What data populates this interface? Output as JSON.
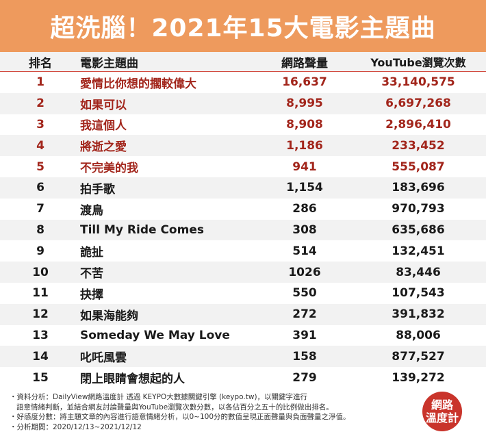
{
  "title": "超洗腦！2021年15大電影主題曲",
  "table": {
    "headers": {
      "rank": "排名",
      "title": "電影主題曲",
      "volume": "網路聲量",
      "views": "YouTube瀏覽次數"
    },
    "rows": [
      {
        "rank": "1",
        "title": "愛情比你想的擱較偉大",
        "volume": "16,637",
        "views": "33,140,575"
      },
      {
        "rank": "2",
        "title": "如果可以",
        "volume": "8,995",
        "views": "6,697,268"
      },
      {
        "rank": "3",
        "title": "我這個人",
        "volume": "8,908",
        "views": "2,896,410"
      },
      {
        "rank": "4",
        "title": "將逝之愛",
        "volume": "1,186",
        "views": "233,452"
      },
      {
        "rank": "5",
        "title": "不完美的我",
        "volume": "941",
        "views": "555,087"
      },
      {
        "rank": "6",
        "title": "拍手歌",
        "volume": "1,154",
        "views": "183,696"
      },
      {
        "rank": "7",
        "title": "渡鳥",
        "volume": "286",
        "views": "970,793"
      },
      {
        "rank": "8",
        "title": "Till My Ride Comes",
        "volume": "308",
        "views": "635,686"
      },
      {
        "rank": "9",
        "title": "詭扯",
        "volume": "514",
        "views": "132,451"
      },
      {
        "rank": "10",
        "title": "不苦",
        "volume": "1026",
        "views": "83,446"
      },
      {
        "rank": "11",
        "title": "抉擇",
        "volume": "550",
        "views": "107,543"
      },
      {
        "rank": "12",
        "title": "如果海能夠",
        "volume": "272",
        "views": "391,832"
      },
      {
        "rank": "13",
        "title": "Someday We May Love",
        "volume": "391",
        "views": "88,006"
      },
      {
        "rank": "14",
        "title": "叱吒風雲",
        "volume": "158",
        "views": "877,527"
      },
      {
        "rank": "15",
        "title": "閉上眼睛會想起的人",
        "volume": "279",
        "views": "139,272"
      }
    ]
  },
  "footer": {
    "line1": "・資料分析：DailyView網路溫度計 透過 KEYPO大數據關鍵引擎 (keypo.tw)，以關鍵字進行",
    "line2": "語意情緒判斷，並結合網友討論聲量與YouTube瀏覽次數分數，以各佔百分之五十的比例做出排名。",
    "line3": "・好感度分數：將主題文章的內容進行語意情緒分析，以0~100分的數值呈現正面聲量與負面聲量之淨值。",
    "line4": "・分析期間：2020/12/13~2021/12/12"
  },
  "logo": {
    "line1": "網路",
    "line2": "溫度計"
  },
  "colors": {
    "title_bar": "#ee9a5d",
    "highlight_text": "#a2251b",
    "logo_bg": "#c9342b",
    "shaded_row": "#f2f2f2"
  }
}
